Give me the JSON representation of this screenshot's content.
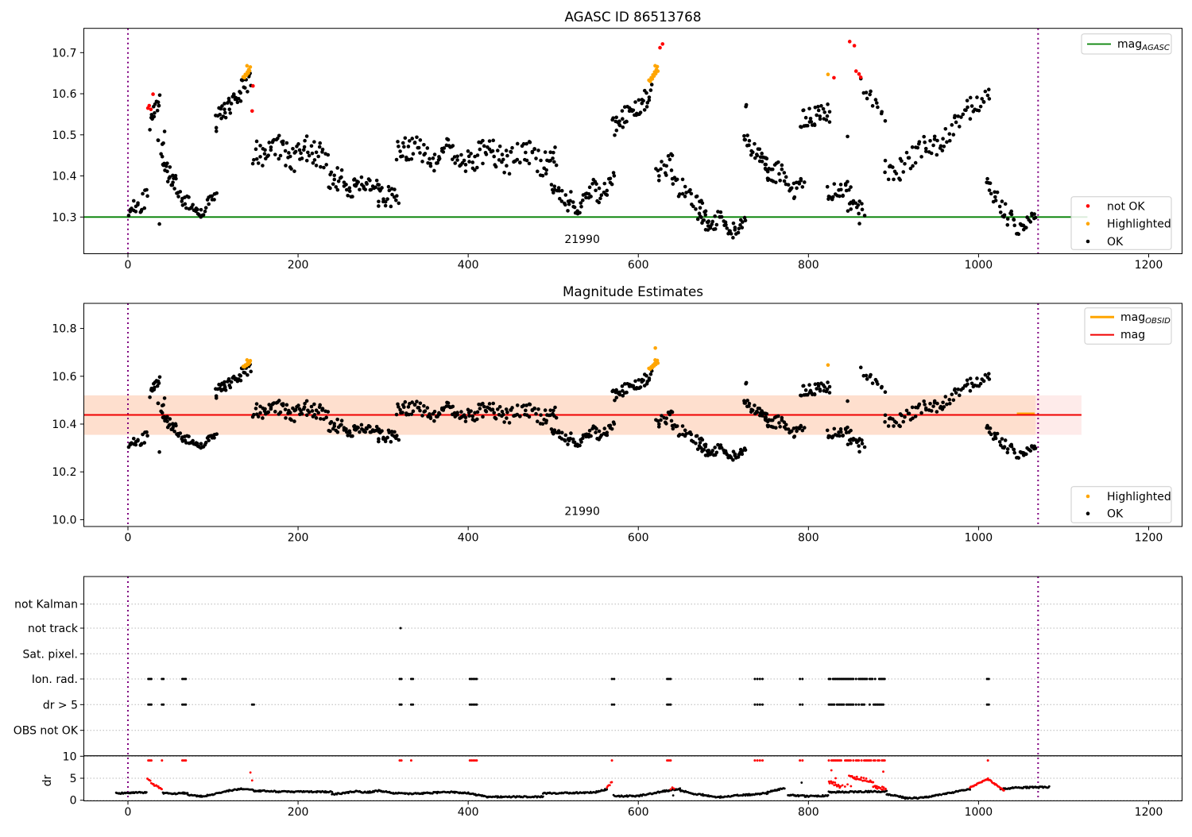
{
  "colors": {
    "ok": "#000000",
    "not_ok": "#ff0000",
    "highlighted": "#ffa500",
    "mag_agasc_line": "#008000",
    "mag_line": "#f00000",
    "obsid_line": "#ffa500",
    "vline": "#800080",
    "grid": "#b8b8b8",
    "band_full": "rgba(250,70,60,0.11)",
    "band_obs": "rgba(255,150,30,0.135)",
    "legend_border": "#cccccc"
  },
  "chart_data": [
    {
      "type": "scatter",
      "title": "AGASC ID 86513768",
      "xlim": [
        -51.9,
        1239.2
      ],
      "ylim": [
        10.211,
        10.759
      ],
      "xticks": [
        0,
        200,
        400,
        600,
        800,
        1000,
        1200
      ],
      "yticks": [
        10.3,
        10.4,
        10.5,
        10.6,
        10.7
      ],
      "hline": {
        "y": 10.3,
        "x0": -51.9,
        "x1": 1128,
        "label": "mag",
        "label_sub": "AGASC"
      },
      "vlines": [
        0,
        1070
      ],
      "annotation": {
        "text": "21990",
        "x": 534,
        "y": 10.237
      },
      "legend_markers": [
        {
          "label": "not OK",
          "color": "not_ok"
        },
        {
          "label": "Highlighted",
          "color": "highlighted"
        },
        {
          "label": "OK",
          "color": "ok"
        }
      ],
      "ok_segments": [
        [
          0,
          24,
          18,
          10.305,
          10.355,
          0.05
        ],
        [
          26,
          38,
          14,
          10.53,
          10.6,
          0.045
        ],
        [
          34,
          44,
          5,
          10.47,
          10.5,
          0.035
        ],
        [
          39,
          58,
          22,
          10.43,
          10.375,
          0.05
        ],
        [
          58,
          86,
          22,
          10.355,
          10.308,
          0.032
        ],
        [
          86,
          104,
          14,
          10.31,
          10.36,
          0.03
        ],
        [
          102,
          145,
          42,
          10.528,
          10.638,
          0.052
        ],
        [
          147,
          235,
          72,
          10.452,
          10.458,
          0.07,
          0.012,
          2.5
        ],
        [
          235,
          268,
          26,
          10.4,
          10.372,
          0.06
        ],
        [
          266,
          296,
          24,
          10.378,
          10.36,
          0.055
        ],
        [
          293,
          318,
          20,
          10.35,
          10.35,
          0.05
        ],
        [
          315,
          345,
          24,
          10.465,
          10.475,
          0.06
        ],
        [
          345,
          505,
          120,
          10.455,
          10.44,
          0.065,
          0.013,
          3.5
        ],
        [
          497,
          521,
          18,
          10.375,
          10.315,
          0.05
        ],
        [
          521,
          572,
          40,
          10.33,
          10.385,
          0.05,
          0.01,
          2
        ],
        [
          569,
          616,
          44,
          10.515,
          10.6,
          0.05
        ],
        [
          620,
          640,
          14,
          10.4,
          10.435,
          0.045
        ],
        [
          638,
          684,
          30,
          10.395,
          10.3,
          0.05
        ],
        [
          670,
          726,
          46,
          10.3,
          10.27,
          0.045,
          0.008,
          2
        ],
        [
          725,
          729,
          2,
          10.57,
          10.58,
          0.012
        ],
        [
          723,
          755,
          26,
          10.49,
          10.425,
          0.04
        ],
        [
          745,
          795,
          40,
          10.43,
          10.36,
          0.05,
          0.01,
          2
        ],
        [
          790,
          826,
          30,
          10.535,
          10.555,
          0.05
        ],
        [
          821,
          850,
          22,
          10.355,
          10.375,
          0.04
        ],
        [
          846,
          866,
          14,
          10.33,
          10.315,
          0.04
        ],
        [
          862,
          890,
          13,
          10.625,
          10.53,
          0.035
        ],
        [
          889,
          1014,
          78,
          10.415,
          10.615,
          0.055,
          0.01,
          2.5,
          1.5
        ],
        [
          1008,
          1044,
          26,
          10.385,
          10.275,
          0.045
        ],
        [
          1044,
          1068,
          18,
          10.265,
          10.3,
          0.035
        ]
      ],
      "ok_singles": [
        [
          37,
          10.283
        ],
        [
          860,
          10.284
        ],
        [
          846,
          10.496
        ]
      ],
      "not_ok": [
        [
          23.5,
          10.565
        ],
        [
          25,
          10.571
        ],
        [
          27,
          10.562
        ],
        [
          29.5,
          10.599
        ],
        [
          146,
          10.558
        ],
        [
          147,
          10.619
        ],
        [
          625.5,
          10.712
        ],
        [
          628.5,
          10.721
        ],
        [
          830,
          10.639
        ],
        [
          848.5,
          10.727
        ],
        [
          854,
          10.717
        ],
        [
          856,
          10.655
        ],
        [
          859.5,
          10.648
        ],
        [
          861.5,
          10.64
        ]
      ],
      "highlighted": [
        [
          135.5,
          10.641
        ],
        [
          137,
          10.639
        ],
        [
          138,
          10.647
        ],
        [
          139.5,
          10.645
        ],
        [
          140.5,
          10.653
        ],
        [
          141.5,
          10.65
        ],
        [
          142,
          10.659
        ],
        [
          143,
          10.656
        ],
        [
          143.8,
          10.665
        ],
        [
          140,
          10.668
        ],
        [
          612.5,
          10.633
        ],
        [
          614,
          10.63
        ],
        [
          615.2,
          10.639
        ],
        [
          616.5,
          10.636
        ],
        [
          617.2,
          10.646
        ],
        [
          618.5,
          10.643
        ],
        [
          619.2,
          10.653
        ],
        [
          620.5,
          10.649
        ],
        [
          621.2,
          10.659
        ],
        [
          622.3,
          10.666
        ],
        [
          623,
          10.655
        ],
        [
          619.8,
          10.668
        ],
        [
          823,
          10.647
        ]
      ]
    },
    {
      "type": "scatter",
      "title": "Magnitude Estimates",
      "xlim": [
        -51.9,
        1239.2
      ],
      "ylim": [
        9.971,
        10.905
      ],
      "xticks": [
        0,
        200,
        400,
        600,
        800,
        1000,
        1200
      ],
      "yticks": [
        10.0,
        10.2,
        10.4,
        10.6,
        10.8
      ],
      "mag_line": {
        "y": 10.438,
        "x0": -51.9,
        "x1": 1121
      },
      "obsid_line": {
        "y": 10.444,
        "x0": 1045,
        "x1": 1066
      },
      "band_full": {
        "y0": 10.355,
        "y1": 10.52,
        "x0": -51.9,
        "x1": 1121
      },
      "band_obs": {
        "y0": 10.355,
        "y1": 10.52,
        "x0": -51.9,
        "x1": 1067
      },
      "vlines": [
        0,
        1070
      ],
      "annotation": {
        "text": "21990",
        "x": 534,
        "y": 10.02
      },
      "legend_lines": [
        {
          "label": "mag",
          "sub": "OBSID",
          "color": "obsid_line",
          "lw": 3
        },
        {
          "label": "mag",
          "sub": "",
          "color": "mag_line",
          "lw": 2
        }
      ],
      "legend_markers": [
        {
          "label": "Highlighted",
          "color": "highlighted"
        },
        {
          "label": "OK",
          "color": "ok"
        }
      ],
      "reuse_points_from": 0,
      "extra_highlighted": [
        [
          620,
          10.718
        ]
      ]
    },
    {
      "type": "flags_and_dr",
      "rows": [
        "not Kalman",
        "not track",
        "Sat. pixel.",
        "Ion. rad.",
        "dr > 5",
        "OBS not OK"
      ],
      "yticks": [
        10,
        5,
        0
      ],
      "ylabel": "dr",
      "xticks": [
        0,
        200,
        400,
        600,
        800,
        1000,
        1200
      ],
      "vlines": [
        0,
        1070
      ],
      "hline_y": 10.1,
      "flags": {
        "not track": [
          320.5
        ],
        "Ion. rad.": [
          24,
          25.8,
          27.5,
          40,
          41.8,
          64,
          66,
          68,
          319.5,
          321.5,
          333,
          335,
          402,
          404,
          406,
          408,
          410,
          569,
          571.5,
          634,
          636,
          638,
          737,
          740,
          743,
          746,
          790,
          793,
          1010,
          1012
        ],
        "dr > 5": [
          24,
          25.8,
          27.5,
          40,
          41.8,
          64,
          66,
          68,
          146,
          148,
          319.5,
          321.5,
          333,
          335,
          402,
          404,
          406,
          408,
          410,
          569,
          571.5,
          634,
          636,
          638,
          737,
          740,
          743,
          746,
          790,
          793,
          1010,
          1012
        ]
      },
      "flag_run": {
        "x0": 824,
        "x1": 891,
        "step": 1.6,
        "rows": [
          "Ion. rad.",
          "dr > 5"
        ]
      },
      "clip_dots": {
        "y": 9.05,
        "xs": [
          24,
          25.8,
          27.5,
          40,
          64,
          66,
          68,
          319.5,
          321.5,
          333,
          402,
          404,
          406,
          408,
          410,
          569,
          634,
          636,
          638,
          737,
          740,
          743,
          746,
          790,
          793,
          1011
        ],
        "run": [
          824,
          891,
          1.6
        ]
      },
      "dr_black": [
        [
          -14,
          22,
          1.6,
          1.75
        ],
        [
          41,
          54,
          1.6,
          1.45
        ],
        [
          54,
          70,
          1.45,
          1.7
        ],
        [
          70,
          86,
          1.25,
          0.9
        ],
        [
          86,
          100,
          0.9,
          1.25
        ],
        [
          100,
          116,
          1.35,
          2.0
        ],
        [
          116,
          133,
          2.1,
          2.6
        ],
        [
          133,
          148,
          2.55,
          2.3
        ],
        [
          148,
          175,
          2.15,
          2.0
        ],
        [
          175,
          240,
          1.95,
          1.9
        ],
        [
          240,
          252,
          1.4,
          1.55
        ],
        [
          252,
          268,
          1.6,
          2.0
        ],
        [
          268,
          282,
          2.0,
          1.75
        ],
        [
          282,
          296,
          1.8,
          2.2
        ],
        [
          296,
          312,
          2.1,
          1.7
        ],
        [
          312,
          330,
          1.65,
          1.45
        ],
        [
          330,
          352,
          1.45,
          1.6
        ],
        [
          352,
          378,
          1.65,
          1.85
        ],
        [
          378,
          400,
          1.85,
          1.65
        ],
        [
          400,
          422,
          1.55,
          0.85
        ],
        [
          422,
          488,
          0.75,
          0.8
        ],
        [
          488,
          550,
          1.55,
          1.8
        ],
        [
          550,
          563,
          1.85,
          2.5
        ],
        [
          571,
          577,
          1.1,
          0.85
        ],
        [
          577,
          602,
          0.9,
          1.0
        ],
        [
          602,
          636,
          1.05,
          2.25
        ],
        [
          636,
          649,
          2.35,
          2.55
        ],
        [
          649,
          664,
          2.25,
          1.5
        ],
        [
          664,
          676,
          1.45,
          1.25
        ],
        [
          676,
          694,
          1.15,
          0.65
        ],
        [
          694,
          712,
          0.65,
          1.05
        ],
        [
          712,
          731,
          1.05,
          1.25
        ],
        [
          731,
          752,
          1.3,
          1.6
        ],
        [
          752,
          772,
          1.9,
          2.75
        ],
        [
          776,
          797,
          1.25,
          0.9
        ],
        [
          797,
          823,
          0.9,
          1.05
        ],
        [
          824,
          892,
          1.85,
          2.0
        ],
        [
          892,
          914,
          1.4,
          0.55
        ],
        [
          914,
          936,
          0.45,
          0.55
        ],
        [
          936,
          956,
          0.65,
          1.3
        ],
        [
          958,
          990,
          1.35,
          2.55
        ],
        [
          1026,
          1044,
          2.5,
          2.85
        ],
        [
          1044,
          1083,
          2.85,
          3.0
        ]
      ],
      "dr_red": [
        [
          23,
          30,
          5.1,
          3.5,
          0.2
        ],
        [
          30,
          40,
          3.5,
          2.7,
          0.2
        ],
        [
          563,
          569,
          2.9,
          4.0,
          0.3
        ],
        [
          824,
          838,
          4.4,
          3.2,
          0.5
        ],
        [
          848,
          876,
          5.5,
          4.1,
          0.45
        ],
        [
          876,
          891,
          3.3,
          2.5,
          0.4
        ],
        [
          990,
          1011,
          2.9,
          4.85,
          0.12
        ],
        [
          1011,
          1030,
          4.85,
          2.2,
          0.12
        ]
      ],
      "dr_black_points": [
        [
          792,
          4.0
        ],
        [
          641,
          1.1
        ]
      ],
      "dr_red_points": [
        [
          144,
          6.3
        ],
        [
          146,
          4.5
        ],
        [
          638,
          2.5
        ],
        [
          640,
          2.9
        ],
        [
          642,
          2.65
        ],
        [
          827,
          6.8
        ],
        [
          832,
          5.0
        ],
        [
          888,
          6.5
        ],
        [
          840,
          3.4
        ],
        [
          843,
          3.1
        ],
        [
          846,
          3.6
        ],
        [
          850,
          3.2
        ]
      ]
    }
  ]
}
